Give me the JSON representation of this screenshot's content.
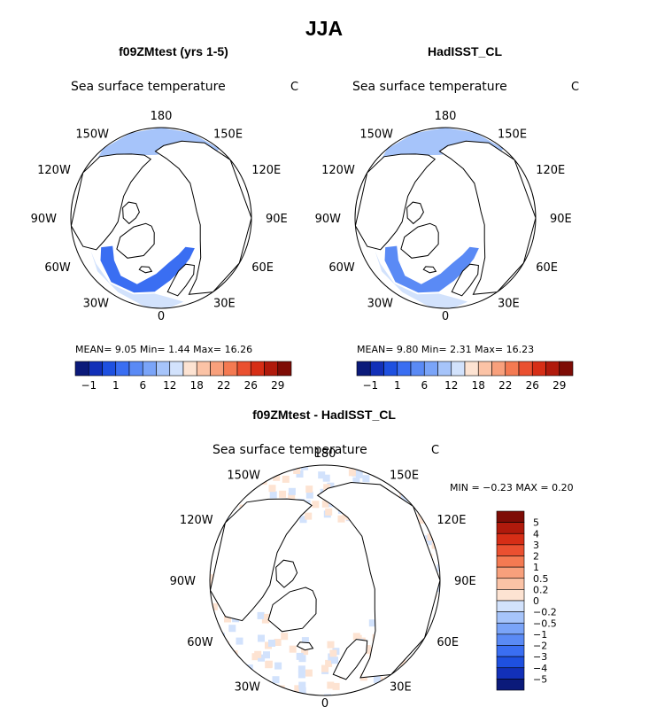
{
  "chart_data": {
    "title": "JJA",
    "panels": [
      {
        "id": "model",
        "type": "heatmap",
        "projection": "north-polar-stereographic",
        "title": "f09ZMtest (yrs 1-5)",
        "field": "Sea surface temperature",
        "units": "C",
        "lon_labels": [
          "180",
          "150E",
          "120E",
          "90E",
          "60E",
          "30E",
          "0",
          "30W",
          "60W",
          "90W",
          "120W",
          "150W"
        ],
        "stats": {
          "mean_label": "MEAN=",
          "mean": "9.05",
          "min_label": "Min=",
          "min": "1.44",
          "max_label": "Max=",
          "max": "16.26"
        },
        "colorbar": {
          "orientation": "horizontal",
          "tick_labels": [
            "-1",
            "1",
            "6",
            "12",
            "18",
            "22",
            "26",
            "29"
          ],
          "colors": [
            "#0b1a7a",
            "#1230b8",
            "#1e50e0",
            "#3a6ef2",
            "#5a8af5",
            "#7aa4f8",
            "#a6c4fa",
            "#d2e2fc",
            "#fde3d2",
            "#fbc3a6",
            "#f8a07c",
            "#f47a52",
            "#ea5030",
            "#d62e16",
            "#b01a0c",
            "#7e0c06"
          ]
        },
        "regions": [
          {
            "name": "north-pacific",
            "shade_index": 6,
            "approx_value": 9
          },
          {
            "name": "north-atlantic-nordic-seas",
            "shade_index": 3,
            "approx_value": 5
          },
          {
            "name": "north-atlantic-south",
            "shade_index": 7,
            "approx_value": 12
          }
        ]
      },
      {
        "id": "obs",
        "type": "heatmap",
        "projection": "north-polar-stereographic",
        "title": "HadISST_CL",
        "field": "Sea surface temperature",
        "units": "C",
        "lon_labels": [
          "180",
          "150E",
          "120E",
          "90E",
          "60E",
          "30E",
          "0",
          "30W",
          "60W",
          "90W",
          "120W",
          "150W"
        ],
        "stats": {
          "mean_label": "MEAN=",
          "mean": "9.80",
          "min_label": "Min=",
          "min": "2.31",
          "max_label": "Max=",
          "max": "16.23"
        },
        "colorbar": {
          "orientation": "horizontal",
          "tick_labels": [
            "-1",
            "1",
            "6",
            "12",
            "18",
            "22",
            "26",
            "29"
          ],
          "colors": [
            "#0b1a7a",
            "#1230b8",
            "#1e50e0",
            "#3a6ef2",
            "#5a8af5",
            "#7aa4f8",
            "#a6c4fa",
            "#d2e2fc",
            "#fde3d2",
            "#fbc3a6",
            "#f8a07c",
            "#f47a52",
            "#ea5030",
            "#d62e16",
            "#b01a0c",
            "#7e0c06"
          ]
        },
        "regions": [
          {
            "name": "north-pacific",
            "shade_index": 6,
            "approx_value": 10
          },
          {
            "name": "north-atlantic-nordic-seas",
            "shade_index": 4,
            "approx_value": 6
          },
          {
            "name": "north-atlantic-south",
            "shade_index": 7,
            "approx_value": 12
          }
        ]
      },
      {
        "id": "diff",
        "type": "heatmap",
        "projection": "north-polar-stereographic",
        "title": "f09ZMtest - HadISST_CL",
        "field": "Sea surface temperature",
        "units": "C",
        "lon_labels": [
          "180",
          "150E",
          "120E",
          "90E",
          "60E",
          "30E",
          "0",
          "30W",
          "60W",
          "90W",
          "120W",
          "150W"
        ],
        "stats": {
          "min_label": "MIN =",
          "min": "-0.23",
          "max_label": "MAX =",
          "max": "0.20"
        },
        "colorbar": {
          "orientation": "vertical",
          "tick_labels": [
            "5",
            "4",
            "3",
            "2",
            "1",
            "0.5",
            "0.2",
            "0",
            "-0.2",
            "-0.5",
            "-1",
            "-2",
            "-3",
            "-4",
            "-5"
          ],
          "colors": [
            "#7e0c06",
            "#b01a0c",
            "#d62e16",
            "#ea5030",
            "#f47a52",
            "#f8a07c",
            "#fbc3a6",
            "#fde3d2",
            "#d2e2fc",
            "#a6c4fa",
            "#7aa4f8",
            "#5a8af5",
            "#3a6ef2",
            "#1e50e0",
            "#1230b8",
            "#0b1a7a"
          ]
        },
        "regions": [
          {
            "name": "patchy-small-differences",
            "shade_indices": [
              7,
              8
            ],
            "approx_range": [
              -0.2,
              0.2
            ]
          }
        ]
      }
    ]
  }
}
